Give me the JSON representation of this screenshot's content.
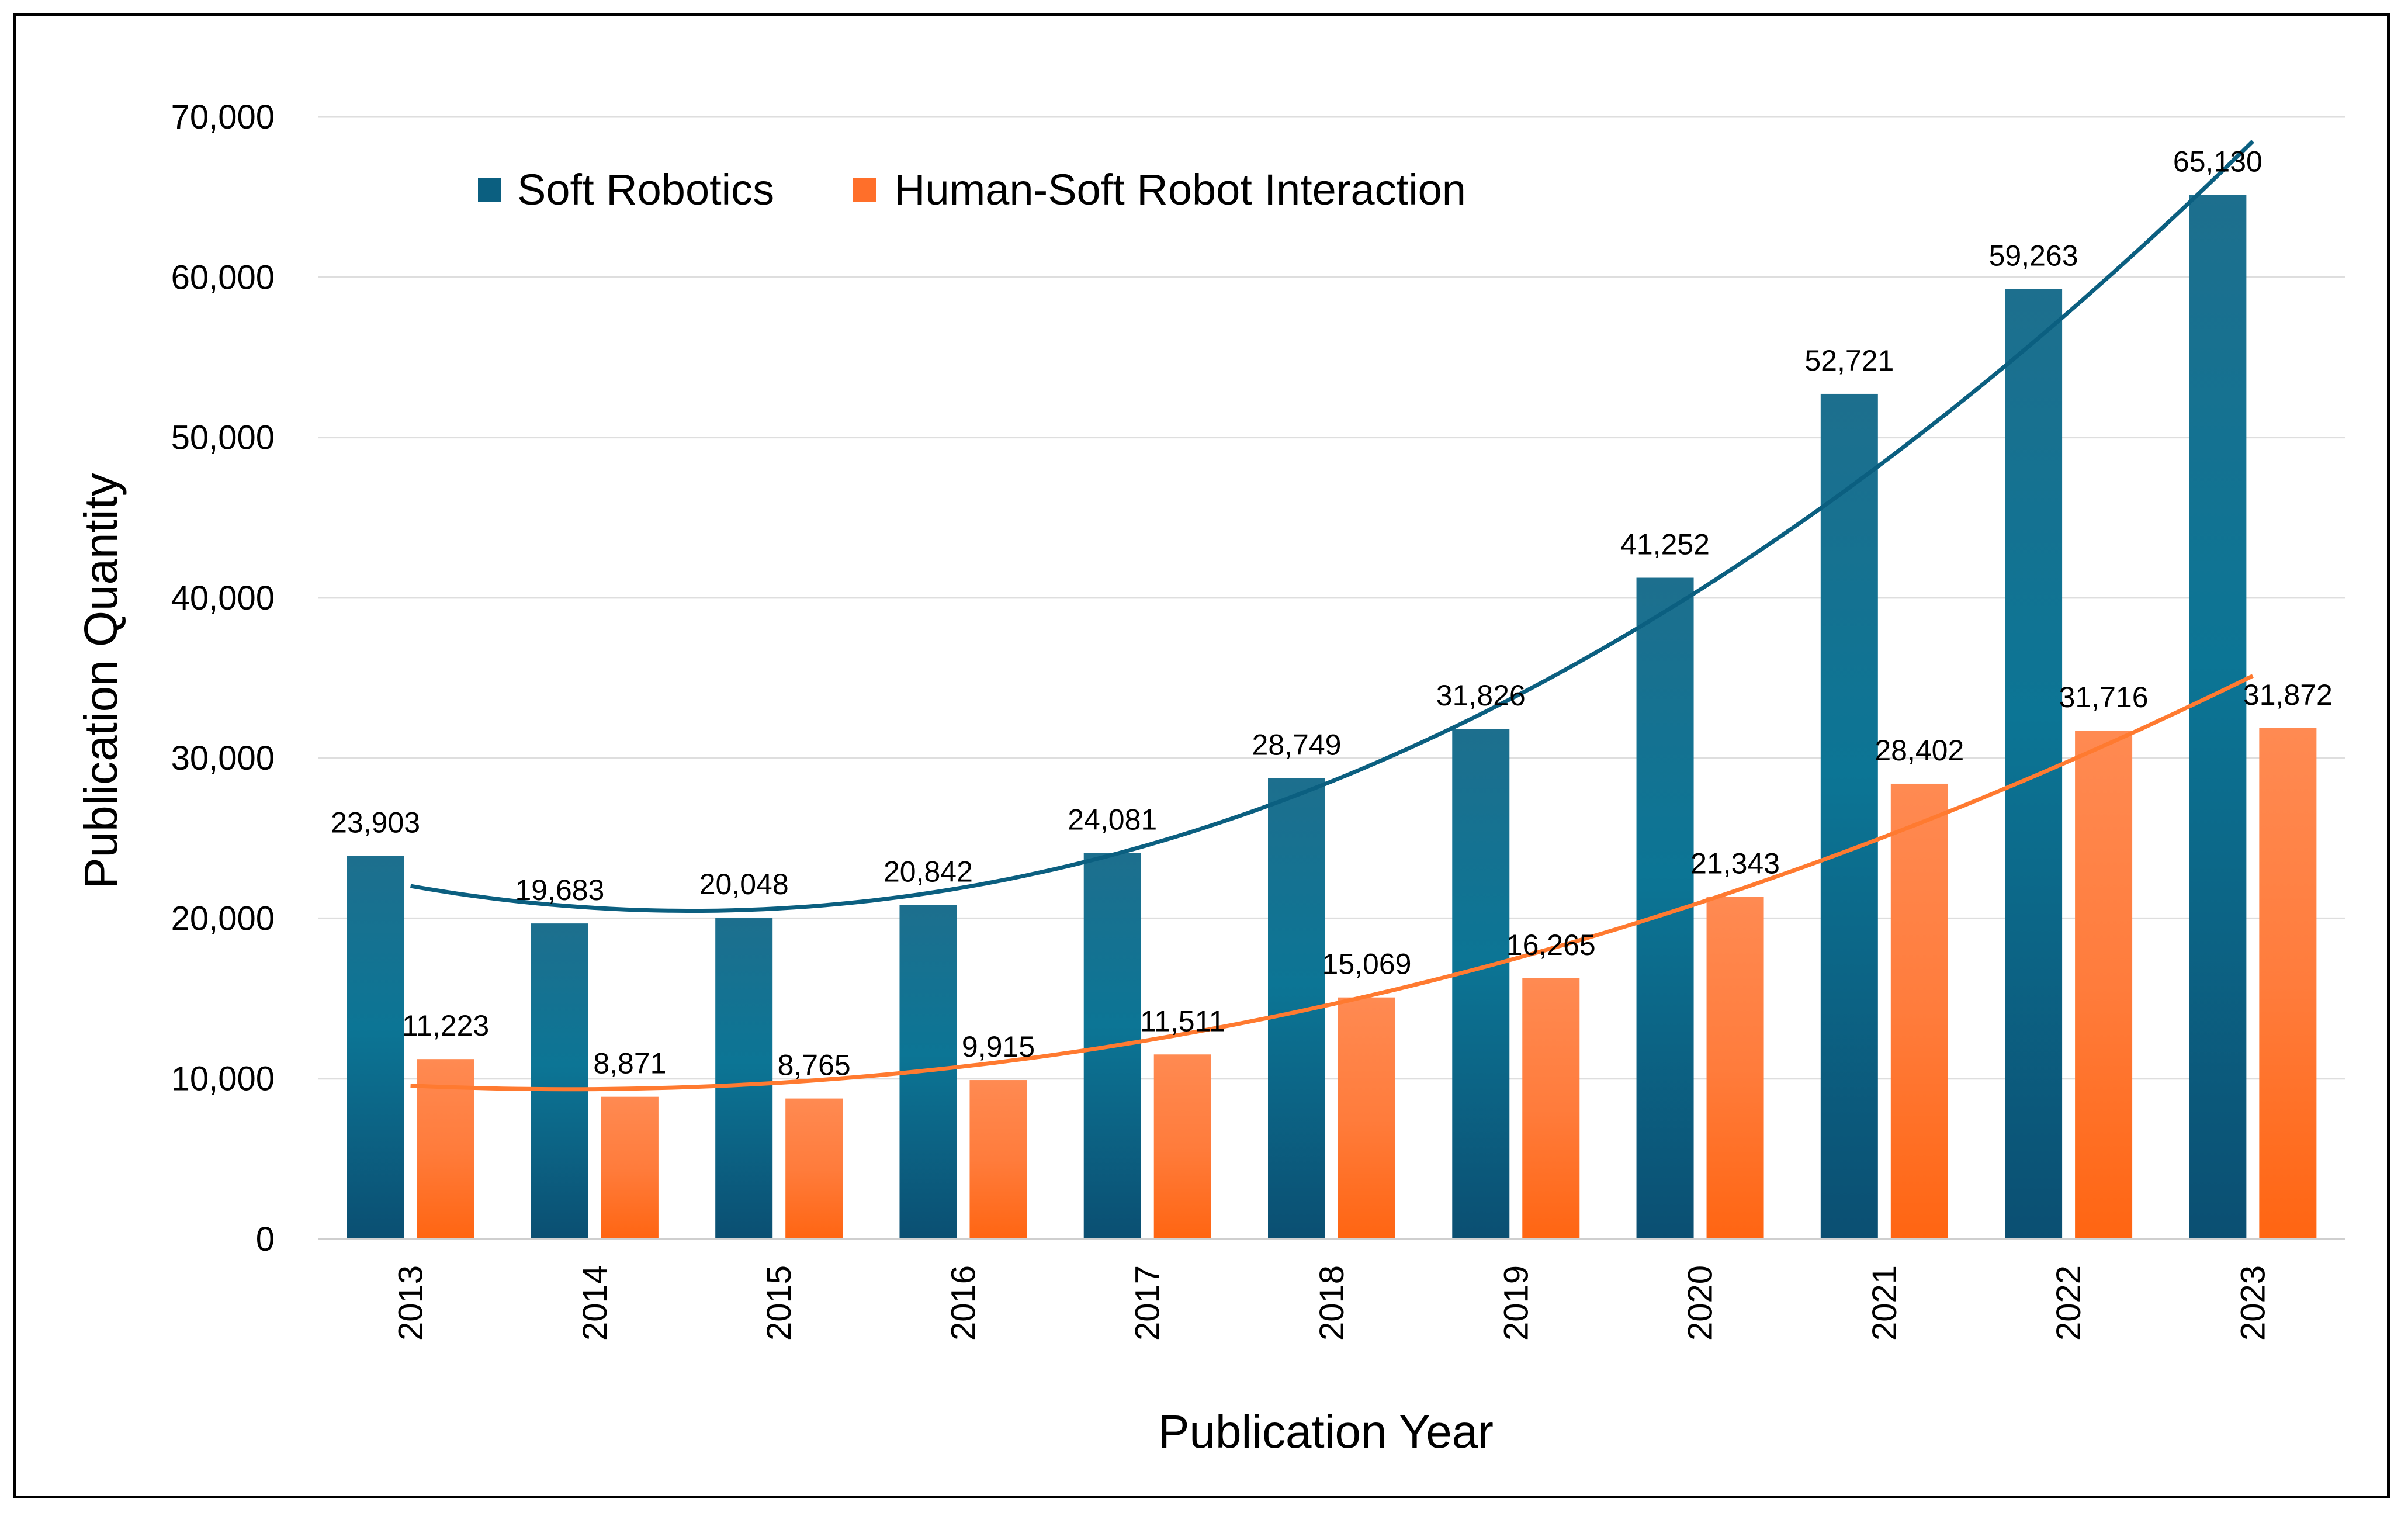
{
  "chart_data": {
    "type": "bar",
    "title": "",
    "xlabel": "Publication Year",
    "ylabel": "Publication Quantity",
    "ylim": [
      0,
      70000
    ],
    "yticks": [
      0,
      10000,
      20000,
      30000,
      40000,
      50000,
      60000,
      70000
    ],
    "ytick_labels": [
      "0",
      "10,000",
      "20,000",
      "30,000",
      "40,000",
      "50,000",
      "60,000",
      "70,000"
    ],
    "grid": true,
    "legend_position": "top-left",
    "categories": [
      "2013",
      "2014",
      "2015",
      "2016",
      "2017",
      "2018",
      "2019",
      "2020",
      "2021",
      "2022",
      "2023"
    ],
    "series": [
      {
        "name": "Soft Robotics",
        "color": "#0a6f8f",
        "values": [
          23903,
          19683,
          20048,
          20842,
          24081,
          28749,
          31826,
          41252,
          52721,
          59263,
          65130
        ],
        "labels": [
          "23,903",
          "19,683",
          "20,048",
          "20,842",
          "24,081",
          "28,749",
          "31,826",
          "41,252",
          "52,721",
          "59,263",
          "65,130"
        ],
        "trendline": "polynomial (order 2)"
      },
      {
        "name": "Human-Soft Robot Interaction",
        "color": "#ff7a3a",
        "values": [
          11223,
          8871,
          8765,
          9915,
          11511,
          15069,
          16265,
          21343,
          28402,
          31716,
          31872
        ],
        "labels": [
          "11,223",
          "8,871",
          "8,765",
          "9,915",
          "11,511",
          "15,069",
          "16,265",
          "21,343",
          "28,402",
          "31,716",
          "31,872"
        ],
        "trendline": "polynomial (order 2)"
      }
    ]
  }
}
